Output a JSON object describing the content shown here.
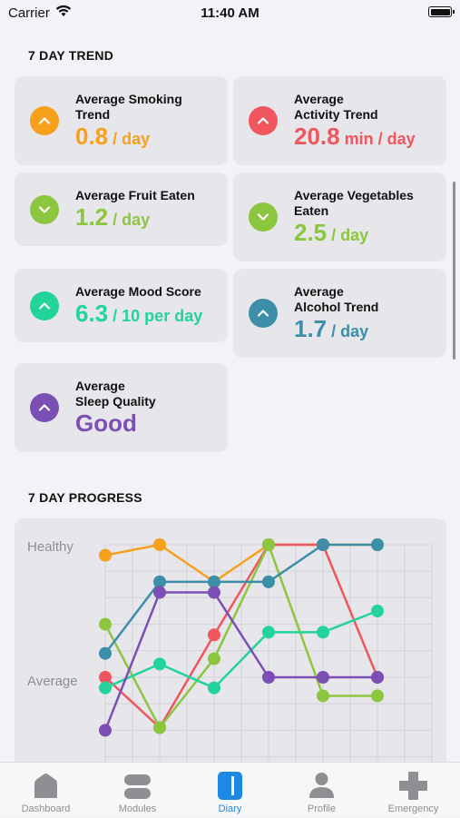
{
  "status": {
    "carrier": "Carrier",
    "time": "11:40 AM"
  },
  "trend": {
    "title": "7 DAY TREND",
    "cards": [
      {
        "label_lines": [
          "Average Smoking",
          "Trend"
        ],
        "value": "0.8",
        "unit": " / day",
        "color": "#f7a01c",
        "icon": "chevron-up-icon"
      },
      {
        "label_lines": [
          "Average",
          "Activity Trend"
        ],
        "value": "20.8",
        "unit": " min / day",
        "color": "#f0565e",
        "icon": "chevron-up-icon"
      },
      {
        "label_lines": [
          "Average Fruit Eaten"
        ],
        "value": "1.2",
        "unit": " / day",
        "color": "#8cc63f",
        "icon": "chevron-down-icon"
      },
      {
        "label_lines": [
          "Average Vegetables",
          "Eaten"
        ],
        "value": "2.5",
        "unit": " / day",
        "color": "#8cc63f",
        "icon": "chevron-down-icon"
      },
      {
        "label_lines": [
          "Average Mood Score"
        ],
        "value": "6.3",
        "unit": " / 10 per day",
        "color": "#22d39a",
        "icon": "chevron-up-icon"
      },
      {
        "label_lines": [
          "Average",
          "Alcohol Trend"
        ],
        "value": "1.7",
        "unit": " / day",
        "color": "#3d8ea8",
        "icon": "chevron-up-icon"
      },
      {
        "label_lines": [
          "Average",
          "Sleep Quality"
        ],
        "value": "Good",
        "unit": "",
        "color": "#7b4fb3",
        "icon": "chevron-up-icon"
      }
    ]
  },
  "progress": {
    "title": "7 DAY PROGRESS"
  },
  "chart_data": {
    "type": "line",
    "y_labels": [
      "Healthy",
      "Average"
    ],
    "x": [
      1,
      2,
      3,
      4,
      5,
      6
    ],
    "ylim": [
      0,
      10
    ],
    "grid": true,
    "series": [
      {
        "color": "#f7a01c",
        "values": [
          9.6,
          10,
          8.6,
          10,
          10,
          10
        ]
      },
      {
        "color": "#f0565e",
        "values": [
          5,
          3.1,
          6.6,
          10,
          10,
          5
        ]
      },
      {
        "color": "#8cc63f",
        "values": [
          7,
          3.1,
          5.7,
          10,
          4.3,
          4.3
        ]
      },
      {
        "color": "#22d39a",
        "values": [
          4.6,
          5.5,
          4.6,
          6.7,
          6.7,
          7.5
        ]
      },
      {
        "color": "#3d8ea8",
        "values": [
          5.9,
          8.6,
          8.6,
          8.6,
          10,
          10
        ]
      },
      {
        "color": "#7b4fb3",
        "values": [
          3,
          8.2,
          8.2,
          5,
          5,
          5
        ]
      }
    ]
  },
  "tabs": [
    {
      "label": "Dashboard",
      "icon": "house-icon",
      "active": false
    },
    {
      "label": "Modules",
      "icon": "modules-icon",
      "active": false
    },
    {
      "label": "Diary",
      "icon": "diary-icon",
      "active": true
    },
    {
      "label": "Profile",
      "icon": "person-icon",
      "active": false
    },
    {
      "label": "Emergency",
      "icon": "cross-icon",
      "active": false
    }
  ]
}
